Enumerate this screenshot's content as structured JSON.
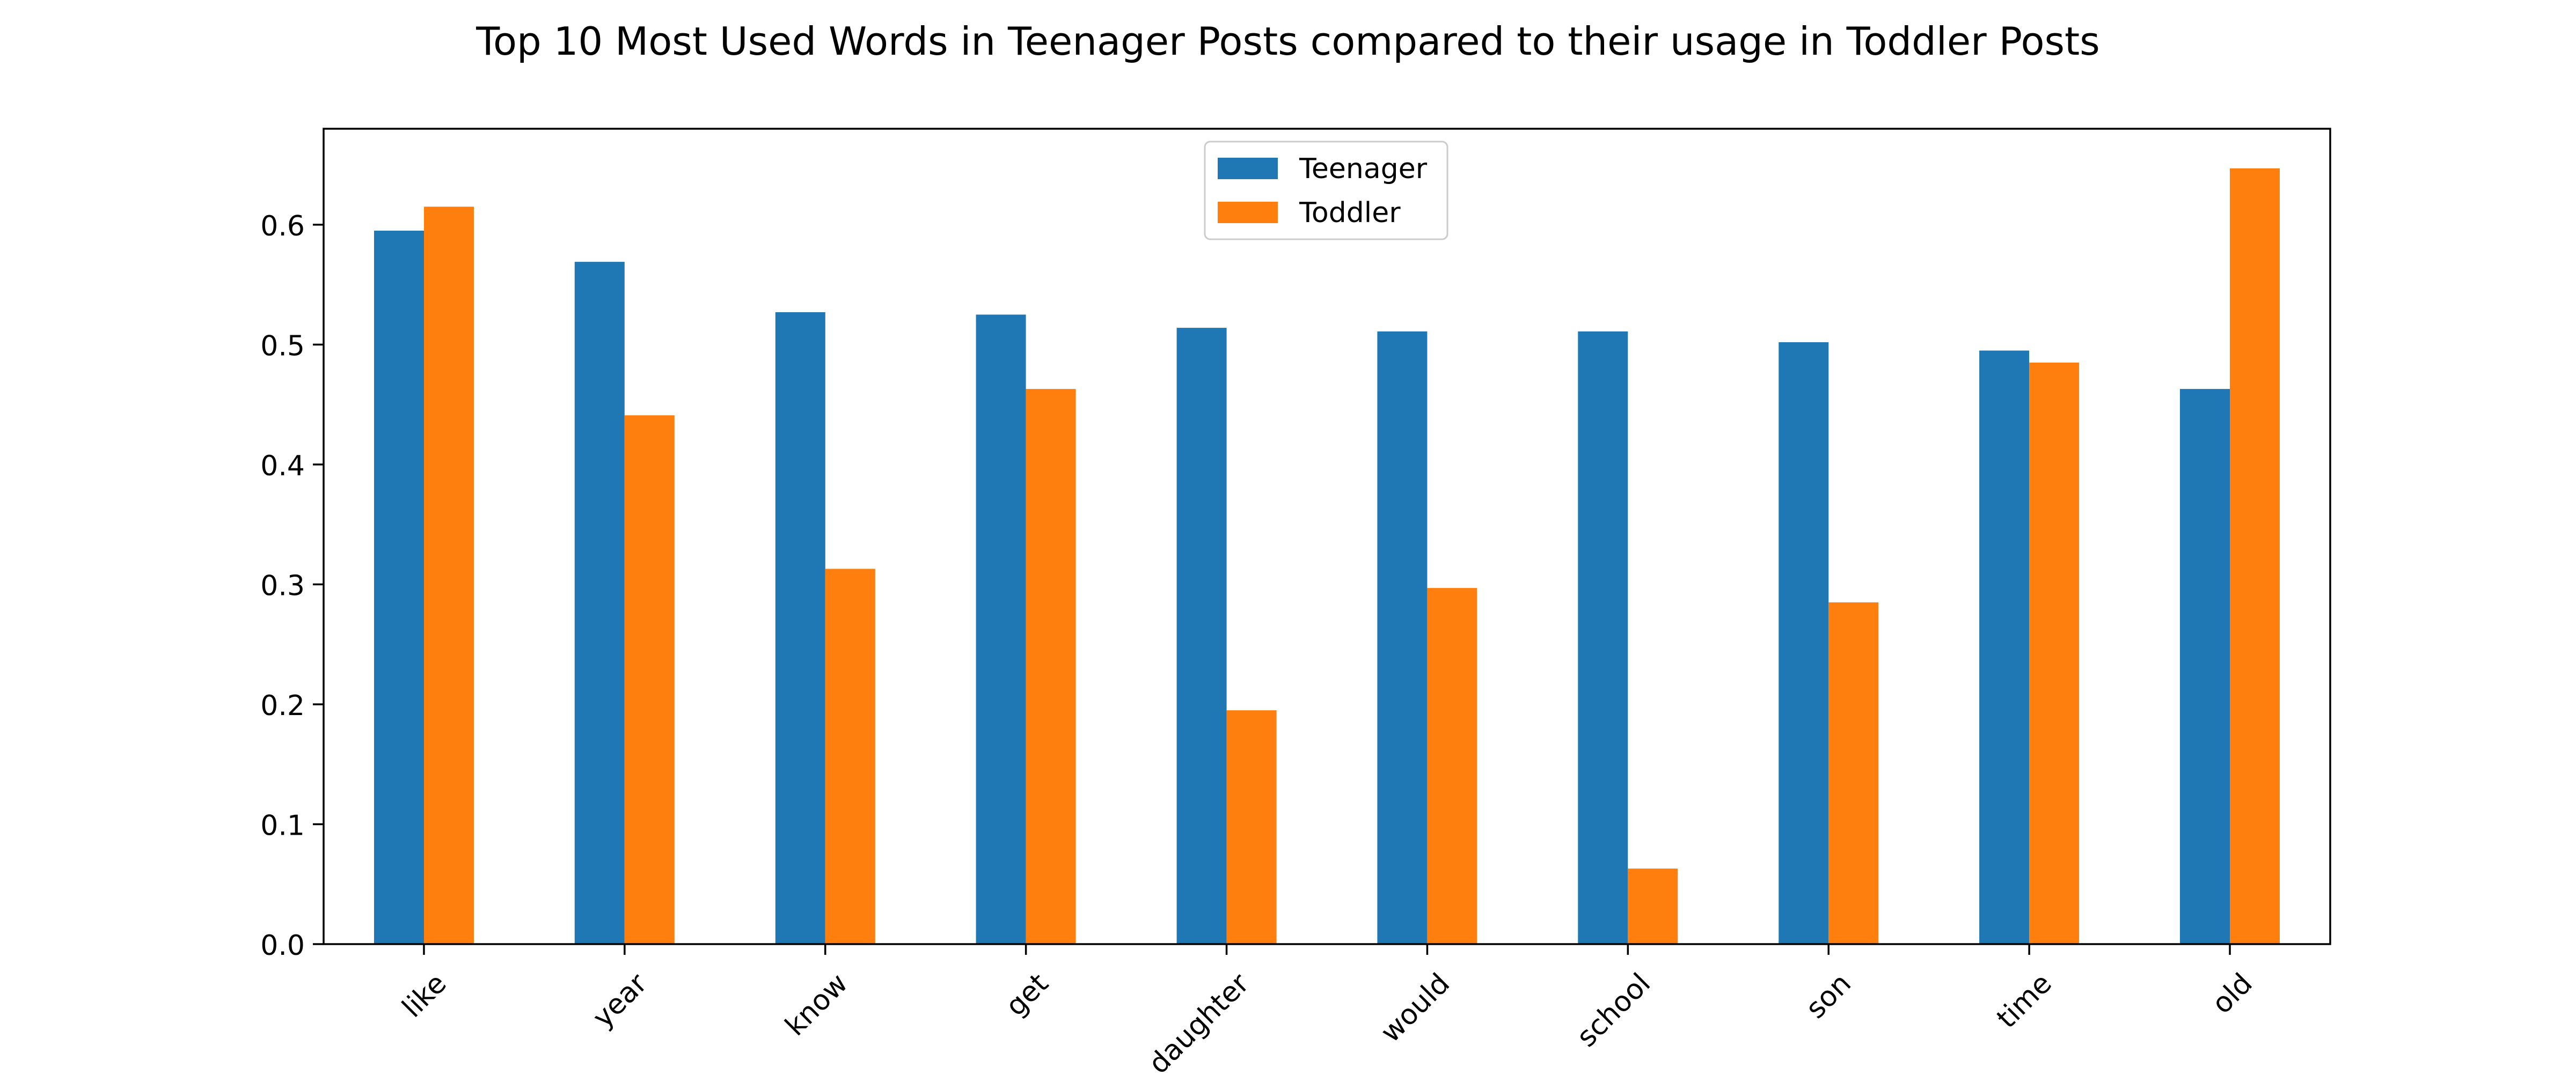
{
  "chart_data": {
    "type": "bar",
    "title": "Top 10 Most Used Words in Teenager Posts compared to their usage in Toddler Posts",
    "xlabel": "",
    "ylabel": "",
    "categories": [
      "like",
      "year",
      "know",
      "get",
      "daughter",
      "would",
      "school",
      "son",
      "time",
      "old"
    ],
    "series": [
      {
        "name": "Teenager",
        "color": "#1f77b4",
        "values": [
          0.595,
          0.569,
          0.527,
          0.525,
          0.514,
          0.511,
          0.511,
          0.502,
          0.495,
          0.463
        ]
      },
      {
        "name": "Toddler",
        "color": "#ff7f0e",
        "values": [
          0.615,
          0.441,
          0.313,
          0.463,
          0.195,
          0.297,
          0.063,
          0.285,
          0.485,
          0.647
        ]
      }
    ],
    "ylim": [
      0,
      0.68
    ],
    "yticks": [
      "0.0",
      "0.1",
      "0.2",
      "0.3",
      "0.4",
      "0.5",
      "0.6"
    ],
    "xtick_rotation": "45 degrees",
    "grid": false,
    "legend_placement": "upper center"
  }
}
